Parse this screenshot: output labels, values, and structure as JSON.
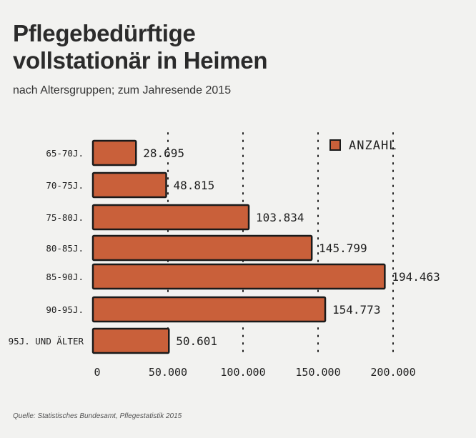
{
  "header": {
    "title_line1": "Pflegebedürftige",
    "title_line2": "vollstationär in Heimen",
    "subtitle": "nach Altersgruppen; zum Jahresende 2015"
  },
  "footer": {
    "source": "Quelle: Statistisches Bundesamt, Pflegestatistik 2015"
  },
  "chart_data": {
    "type": "bar",
    "orientation": "horizontal",
    "categories": [
      "65-70J.",
      "70-75J.",
      "75-80J.",
      "80-85J.",
      "85-90J.",
      "90-95J.",
      "95J. UND ÄLTER"
    ],
    "series": [
      {
        "name": "ANZAHL",
        "values": [
          28695,
          48815,
          103834,
          145799,
          194463,
          154773,
          50601
        ],
        "labels": [
          "28.695",
          "48.815",
          "103.834",
          "145.799",
          "194.463",
          "154.773",
          "50.601"
        ]
      }
    ],
    "xticks": [
      0,
      50000,
      100000,
      150000,
      200000
    ],
    "xtick_labels": [
      "0",
      "50.000",
      "100.000",
      "150.000",
      "200.000"
    ],
    "xlim": [
      0,
      200000
    ],
    "grid": "vertical dotted",
    "legend": "top-right",
    "colors": {
      "bar": "#c9603a",
      "outline": "#1a1a1a",
      "background": "#f2f2f0"
    }
  }
}
